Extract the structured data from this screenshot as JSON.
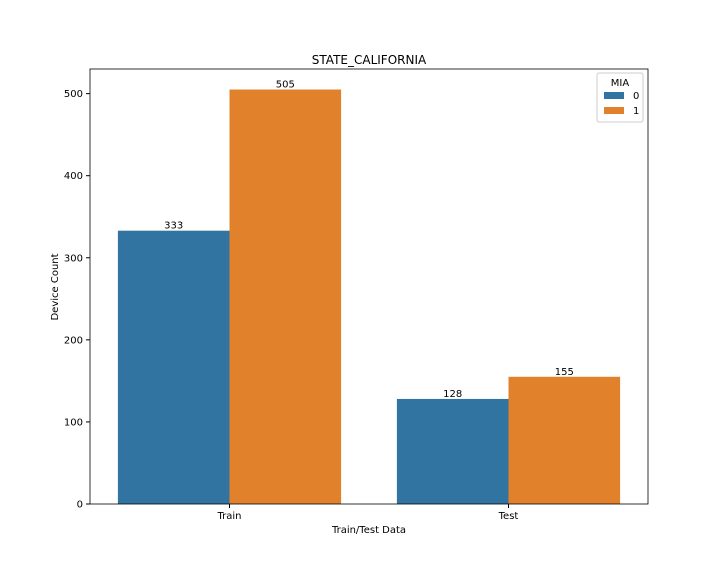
{
  "chart_data": {
    "type": "bar",
    "title": "STATE_CALIFORNIA",
    "xlabel": "Train/Test Data",
    "ylabel": "Device Count",
    "categories": [
      "Train",
      "Test"
    ],
    "series": [
      {
        "name": "0",
        "values": [
          333,
          128
        ],
        "color": "#3274a1"
      },
      {
        "name": "1",
        "values": [
          505,
          155
        ],
        "color": "#e1812c"
      }
    ],
    "data_labels": [
      [
        "333",
        "128"
      ],
      [
        "505",
        "155"
      ]
    ],
    "yticks": [
      0,
      100,
      200,
      300,
      400,
      500
    ],
    "ytick_labels": [
      "0",
      "100",
      "200",
      "300",
      "400",
      "500"
    ],
    "ylim": [
      0,
      530
    ],
    "legend": {
      "title": "MIA",
      "position": "top-right"
    },
    "grid": false
  }
}
